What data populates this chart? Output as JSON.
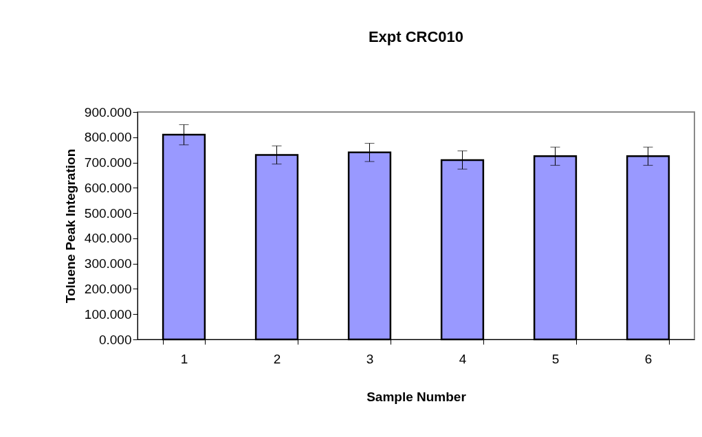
{
  "chart_data": {
    "type": "bar",
    "title": "Expt CRC010",
    "xlabel": "Sample Number",
    "ylabel": "Toluene Peak Integration",
    "categories": [
      "1",
      "2",
      "3",
      "4",
      "5",
      "6"
    ],
    "values": [
      810,
      730,
      740,
      710,
      725,
      725
    ],
    "errors": [
      40,
      36,
      36,
      36,
      36,
      36
    ],
    "color": "#9999ff",
    "ylim": [
      0,
      900
    ],
    "yticks": [
      {
        "value": 0,
        "label": "0.000"
      },
      {
        "value": 100,
        "label": "100.000"
      },
      {
        "value": 200,
        "label": "200.000"
      },
      {
        "value": 300,
        "label": "300.000"
      },
      {
        "value": 400,
        "label": "400.000"
      },
      {
        "value": 500,
        "label": "500.000"
      },
      {
        "value": 600,
        "label": "600.000"
      },
      {
        "value": 700,
        "label": "700.000"
      },
      {
        "value": 800,
        "label": "800.000"
      },
      {
        "value": 900,
        "label": "900.000"
      }
    ],
    "grid": false
  }
}
